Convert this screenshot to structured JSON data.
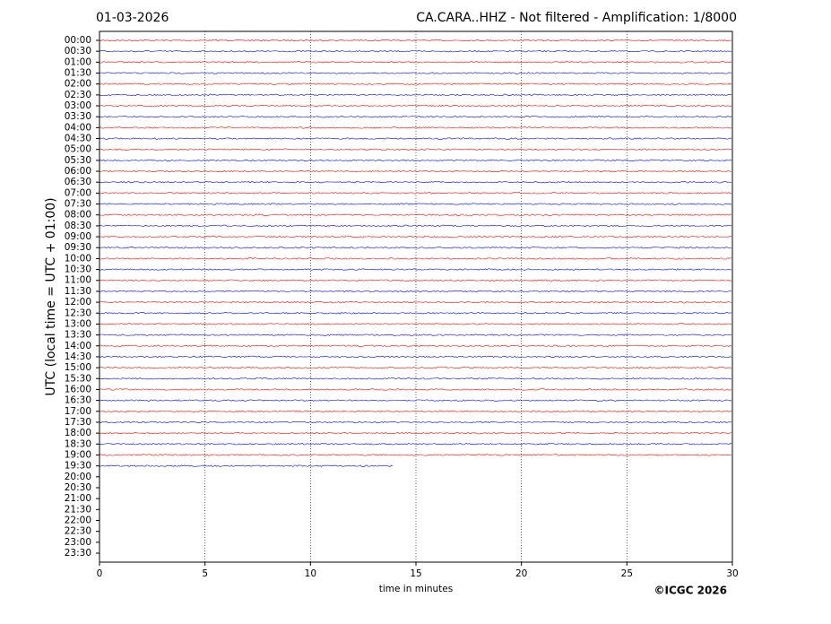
{
  "chart_data": {
    "type": "helicorder",
    "title_left": "01-03-2026",
    "title_right": "CA.CARA..HHZ - Not filtered - Amplification: 1/8000",
    "xlabel": "time in minutes",
    "ylabel": "UTC (local time = UTC + 01:00)",
    "credit": "©ICGC 2026",
    "xlim": [
      0,
      30
    ],
    "xticks": [
      0,
      5,
      10,
      15,
      20,
      25,
      30
    ],
    "grid": true,
    "colors": [
      "#ff0000",
      "#0000ff"
    ],
    "categories": [
      "00:00",
      "00:30",
      "01:00",
      "01:30",
      "02:00",
      "02:30",
      "03:00",
      "03:30",
      "04:00",
      "04:30",
      "05:00",
      "05:30",
      "06:00",
      "06:30",
      "07:00",
      "07:30",
      "08:00",
      "08:30",
      "09:00",
      "09:30",
      "10:00",
      "10:30",
      "11:00",
      "11:30",
      "12:00",
      "12:30",
      "13:00",
      "13:30",
      "14:00",
      "14:30",
      "15:00",
      "15:30",
      "16:00",
      "16:30",
      "17:00",
      "17:30",
      "18:00",
      "18:30",
      "19:00",
      "19:30",
      "20:00",
      "20:30",
      "21:00",
      "21:30",
      "22:00",
      "22:30",
      "23:00",
      "23:30"
    ],
    "values": [
      30,
      30,
      30,
      30,
      30,
      30,
      30,
      30,
      30,
      30,
      30,
      30,
      30,
      30,
      30,
      30,
      30,
      30,
      30,
      30,
      30,
      30,
      30,
      30,
      30,
      30,
      30,
      30,
      30,
      30,
      30,
      30,
      30,
      30,
      30,
      30,
      30,
      30,
      30,
      13.9,
      null,
      null,
      null,
      null,
      null,
      null,
      null,
      null
    ]
  }
}
